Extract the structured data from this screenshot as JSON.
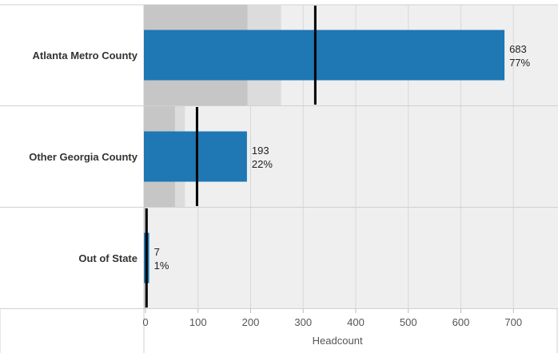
{
  "chart_data": {
    "type": "bar",
    "orientation": "horizontal",
    "subtype": "bullet",
    "categories": [
      "Atlanta Metro County",
      "Other Georgia County",
      "Out of State"
    ],
    "series": [
      {
        "values": [
          683,
          193,
          7
        ],
        "labels": [
          "77%",
          "22%",
          "1%"
        ]
      }
    ],
    "reference_lines": [
      323,
      98,
      2
    ],
    "bands": [
      [
        194,
        258
      ],
      [
        56,
        75
      ],
      [
        2,
        2
      ]
    ],
    "xlabel": "Headcount",
    "ylabel": "",
    "xlim": [
      0,
      775
    ],
    "xticks": [
      0,
      100,
      200,
      300,
      400,
      500,
      600,
      700
    ],
    "grid": true,
    "colors": {
      "bar": "#1f77b4",
      "band_inner": "#c6c6c6",
      "band_outer": "#dcdcdc",
      "plot_background": "#efefef",
      "reference_line": "#000000",
      "gridline": "#d8d8d8"
    }
  }
}
